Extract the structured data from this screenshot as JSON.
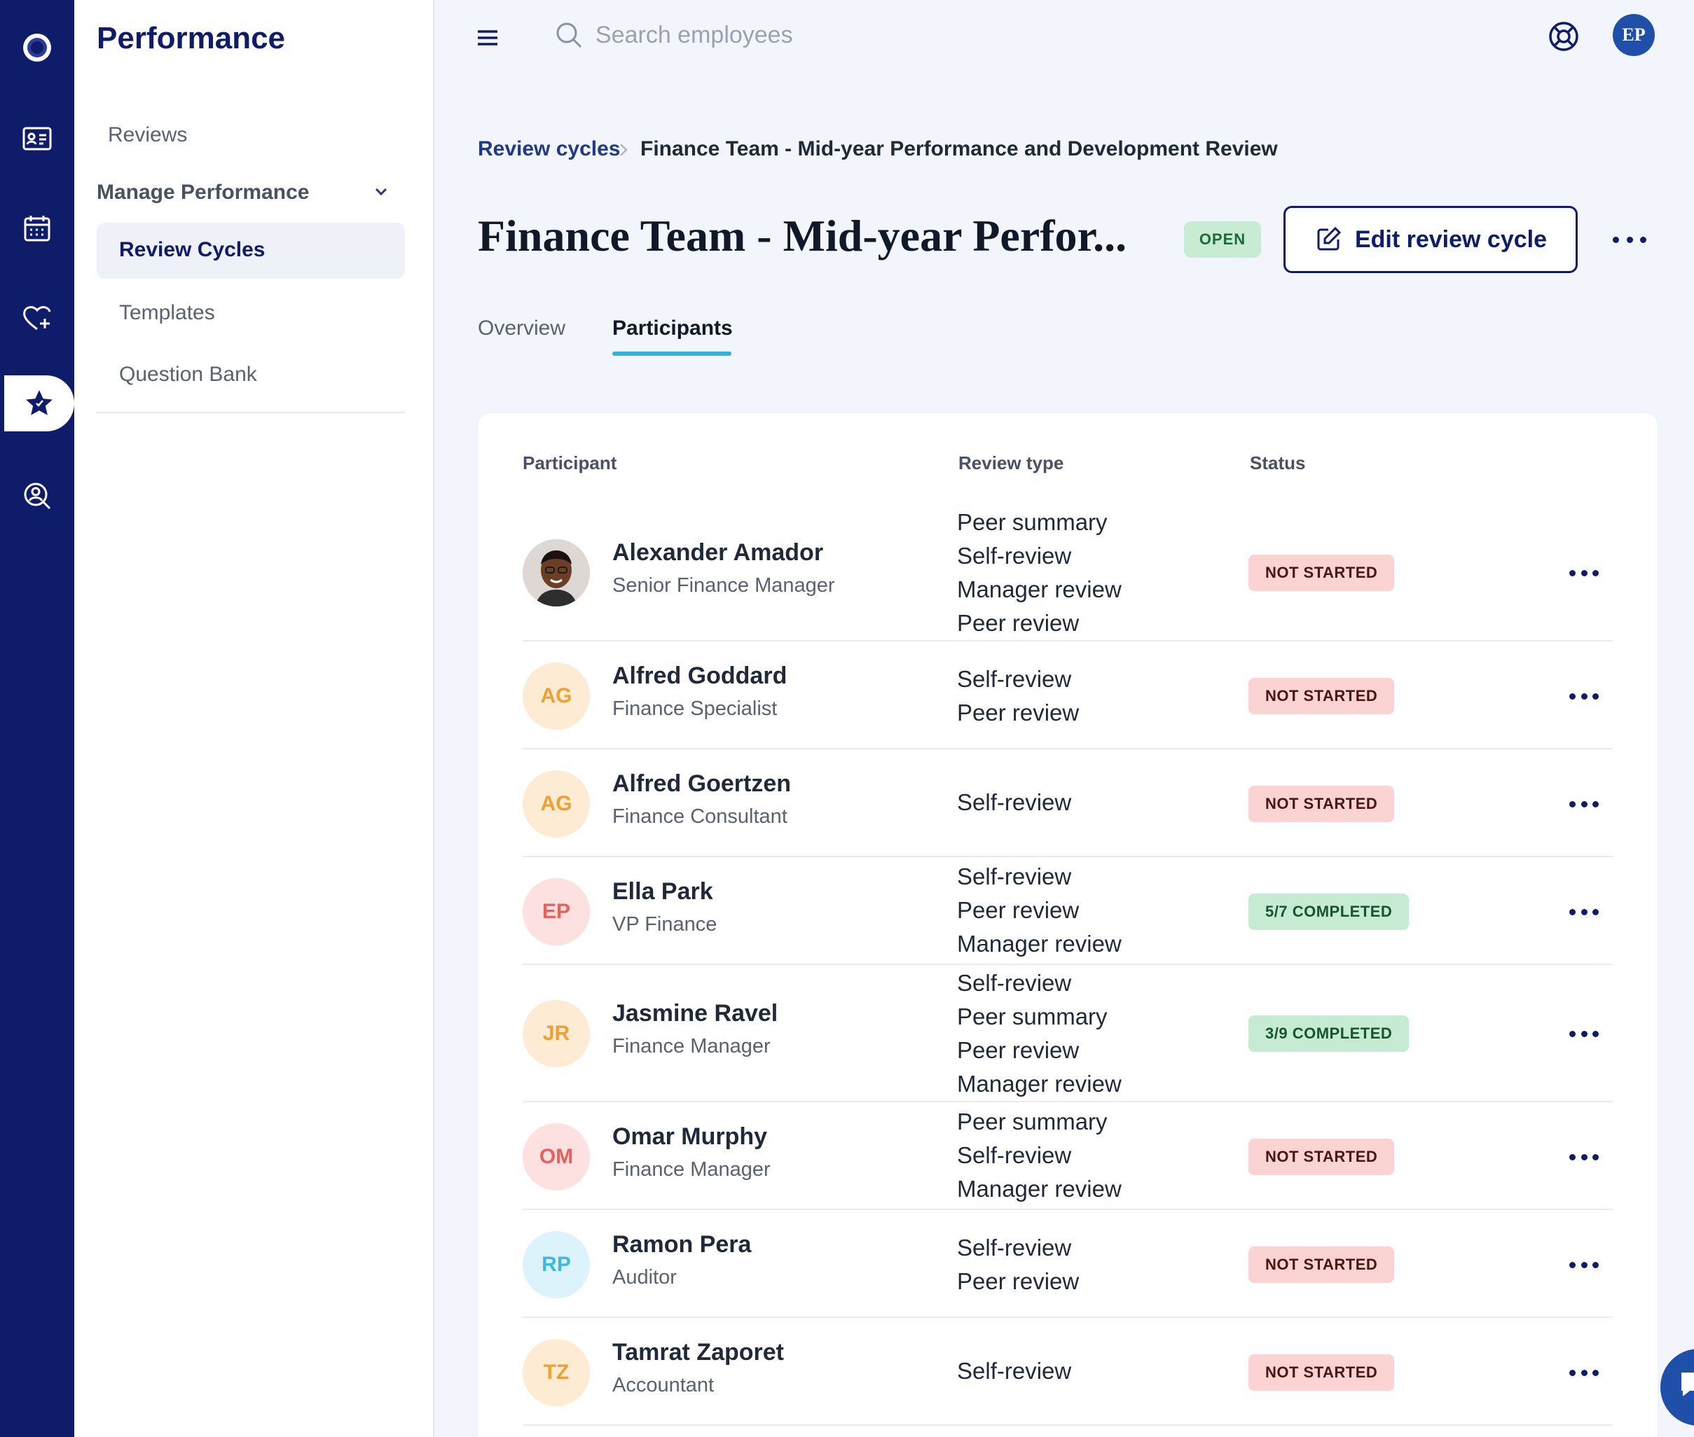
{
  "app": {
    "section_title": "Performance"
  },
  "sidebar": {
    "reviews_label": "Reviews",
    "manage_label": "Manage Performance",
    "items": [
      {
        "label": "Review Cycles",
        "active": true
      },
      {
        "label": "Templates"
      },
      {
        "label": "Question Bank"
      }
    ]
  },
  "topbar": {
    "search_placeholder": "Search employees",
    "user_initials": "EP"
  },
  "breadcrumb": {
    "root": "Review cycles",
    "current": "Finance Team - Mid-year Performance and Development Review"
  },
  "header": {
    "title": "Finance Team - Mid-year Perfor...",
    "status": "OPEN",
    "edit_label": "Edit review cycle"
  },
  "tabs": {
    "overview": "Overview",
    "participants": "Participants"
  },
  "table": {
    "col_participant": "Participant",
    "col_review_type": "Review type",
    "col_status": "Status",
    "rows": [
      {
        "initials": "",
        "photo": true,
        "name": "Alexander Amador",
        "role": "Senior Finance Manager",
        "types": "Peer summary\nSelf-review\nManager review\nPeer review",
        "status": "NOT STARTED"
      },
      {
        "initials": "AG",
        "name": "Alfred Goddard",
        "role": "Finance Specialist",
        "types": "Self-review\nPeer review",
        "status": "NOT STARTED"
      },
      {
        "initials": "AG",
        "name": "Alfred Goertzen",
        "role": "Finance Consultant",
        "types": "Self-review",
        "status": "NOT STARTED"
      },
      {
        "initials": "EP",
        "name": "Ella Park",
        "role": "VP Finance",
        "types": "Self-review\nPeer review\nManager review",
        "status": "5/7 COMPLETED"
      },
      {
        "initials": "JR",
        "name": "Jasmine Ravel",
        "role": "Finance Manager",
        "types": "Self-review\nPeer summary\nPeer review\nManager review",
        "status": "3/9 COMPLETED"
      },
      {
        "initials": "OM",
        "name": "Omar Murphy",
        "role": "Finance Manager",
        "types": "Peer summary\nSelf-review\nManager review",
        "status": "NOT STARTED"
      },
      {
        "initials": "RP",
        "name": "Ramon Pera",
        "role": "Auditor",
        "types": "Self-review\nPeer review",
        "status": "NOT STARTED"
      },
      {
        "initials": "TZ",
        "name": "Tamrat Zaporet",
        "role": "Accountant",
        "types": "Self-review",
        "status": "NOT STARTED"
      }
    ]
  },
  "colors": {
    "brand": "#0e1c6a",
    "accent": "#2ab6dc",
    "avatar_orange_bg": "#fdebd3",
    "avatar_orange_fg": "#f0a030",
    "avatar_red_bg": "#fde0e0",
    "avatar_red_fg": "#e8605c",
    "avatar_blue_bg": "#dcf3fb",
    "avatar_blue_fg": "#3bb9e3"
  }
}
